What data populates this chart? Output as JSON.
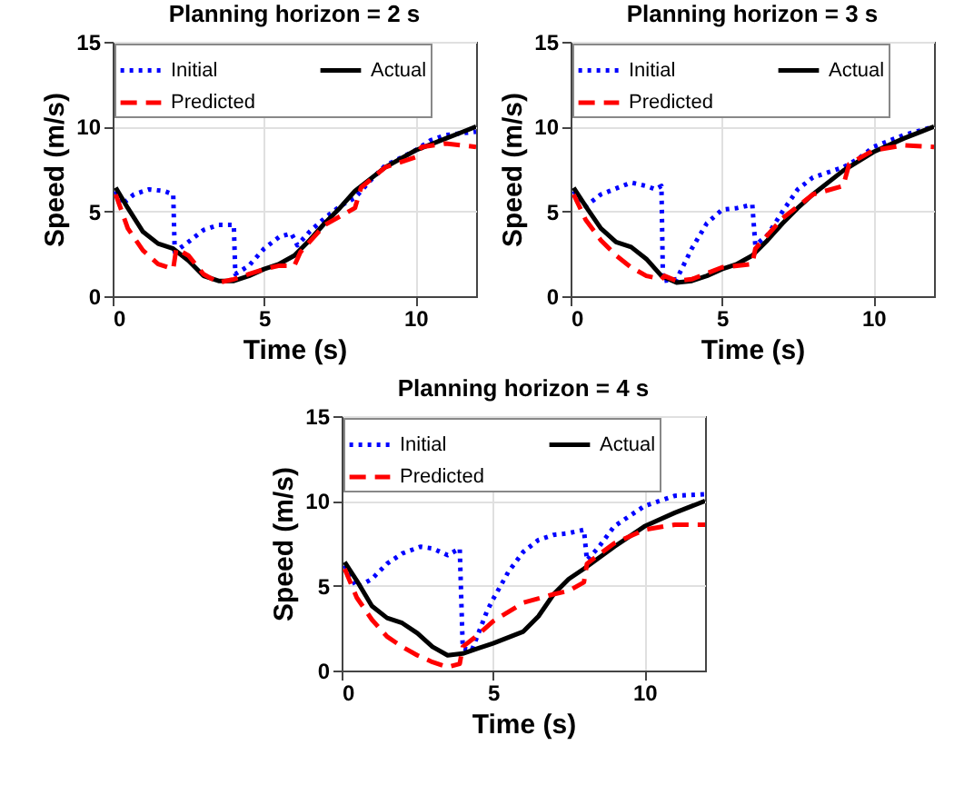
{
  "chart_data": [
    {
      "type": "line",
      "title": "Planning horizon = 2 s",
      "xlabel": "Time (s)",
      "ylabel": "Speed (m/s)",
      "xlim": [
        0,
        12
      ],
      "xticks": [
        0,
        5,
        10
      ],
      "ylim": [
        0,
        15
      ],
      "yticks": [
        0,
        5,
        10,
        15
      ],
      "grid": true,
      "legend": "top",
      "series": [
        {
          "name": "Initial",
          "color": "#0000ff",
          "line_style": "dotted",
          "x": [
            0.1,
            0.3,
            0.7,
            1.2,
            1.7,
            2,
            2.05,
            2.5,
            3,
            3.5,
            4,
            4.05,
            4.5,
            5,
            5.5,
            5.9,
            6.1,
            6.5,
            7,
            7.5,
            8,
            8.5,
            9,
            10,
            10.5,
            11,
            12
          ],
          "values": [
            6.2,
            5.4,
            6.0,
            6.3,
            6.2,
            6.0,
            2.6,
            3.2,
            3.9,
            4.2,
            4.2,
            1.3,
            1.8,
            2.8,
            3.5,
            3.7,
            3.0,
            3.8,
            4.6,
            5.3,
            5.8,
            6.8,
            7.7,
            8.6,
            9.2,
            9.5,
            9.7
          ]
        },
        {
          "name": "Actual",
          "color": "#000000",
          "line_style": "solid",
          "x": [
            0.1,
            0.5,
            1,
            1.5,
            2,
            2.5,
            3,
            3.5,
            4,
            4.5,
            5,
            5.5,
            6,
            6.5,
            7,
            7.5,
            8,
            9,
            10,
            11,
            12
          ],
          "values": [
            6.4,
            5.2,
            3.8,
            3.1,
            2.8,
            2.1,
            1.2,
            0.9,
            0.9,
            1.2,
            1.6,
            1.9,
            2.4,
            3.3,
            4.3,
            5.2,
            6.2,
            7.6,
            8.6,
            9.3,
            10
          ]
        },
        {
          "name": "Predicted",
          "color": "#ff0000",
          "line_style": "dashed",
          "x": [
            0.1,
            0.5,
            1,
            1.5,
            2,
            2.1,
            2.5,
            3,
            3.5,
            4,
            4.5,
            5,
            5.5,
            6,
            6.2,
            7,
            7.5,
            8,
            8.2,
            9,
            10,
            10.2,
            11,
            11.5,
            12
          ],
          "values": [
            6.0,
            4.0,
            2.7,
            1.9,
            1.6,
            2.8,
            2.4,
            1.3,
            0.8,
            1.0,
            1.3,
            1.6,
            1.8,
            1.8,
            2.6,
            4.2,
            4.7,
            5.2,
            6.4,
            7.6,
            8.2,
            8.8,
            9.0,
            8.9,
            8.8
          ]
        }
      ]
    },
    {
      "type": "line",
      "title": "Planning horizon = 3 s",
      "xlabel": "Time (s)",
      "ylabel": "Speed (m/s)",
      "xlim": [
        0,
        12
      ],
      "xticks": [
        0,
        5,
        10
      ],
      "ylim": [
        0,
        15
      ],
      "yticks": [
        0,
        5,
        10,
        15
      ],
      "grid": true,
      "legend": "top",
      "series": [
        {
          "name": "Initial",
          "color": "#0000ff",
          "line_style": "dotted",
          "x": [
            0.1,
            0.5,
            1,
            2,
            2.5,
            2.8,
            3,
            3.05,
            3.5,
            4,
            4.5,
            5,
            5.5,
            6,
            6.1,
            6.5,
            7,
            7.5,
            8,
            9,
            9.5,
            10,
            11,
            12
          ],
          "values": [
            6.2,
            5.3,
            6.0,
            6.7,
            6.5,
            6.3,
            6.5,
            0.9,
            1.0,
            2.8,
            4.3,
            5.1,
            5.2,
            5.4,
            3.0,
            3.6,
            5.0,
            6.3,
            7.0,
            7.6,
            8.1,
            8.8,
            9.5,
            10
          ]
        },
        {
          "name": "Actual",
          "color": "#000000",
          "line_style": "solid",
          "x": [
            0.1,
            0.5,
            1,
            1.5,
            2,
            2.5,
            3,
            3.5,
            4,
            4.5,
            5,
            5.5,
            6,
            6.5,
            7,
            7.5,
            8,
            9,
            10,
            11,
            12
          ],
          "values": [
            6.4,
            5.3,
            4.0,
            3.2,
            2.9,
            2.2,
            1.2,
            0.8,
            0.9,
            1.2,
            1.6,
            1.9,
            2.4,
            3.3,
            4.3,
            5.2,
            6.0,
            7.4,
            8.5,
            9.3,
            10
          ]
        },
        {
          "name": "Predicted",
          "color": "#ff0000",
          "line_style": "dashed",
          "x": [
            0.1,
            0.5,
            1,
            1.5,
            2,
            2.5,
            3,
            3.1,
            3.5,
            4,
            5,
            6,
            6.1,
            7,
            8,
            9,
            9.2,
            10,
            11,
            12
          ],
          "values": [
            6.0,
            4.5,
            3.3,
            2.4,
            1.7,
            1.2,
            1.0,
            1.2,
            0.9,
            1.0,
            1.7,
            1.9,
            2.8,
            4.6,
            6.0,
            6.5,
            7.8,
            8.6,
            8.9,
            8.8
          ]
        }
      ]
    },
    {
      "type": "line",
      "title": "Planning horizon = 4 s",
      "xlabel": "Time (s)",
      "ylabel": "Speed (m/s)",
      "xlim": [
        0,
        12
      ],
      "xticks": [
        0,
        5,
        10
      ],
      "ylim": [
        0,
        15
      ],
      "yticks": [
        0,
        5,
        10,
        15
      ],
      "grid": true,
      "legend": "top",
      "series": [
        {
          "name": "Initial",
          "color": "#0000ff",
          "line_style": "dotted",
          "x": [
            0.1,
            0.5,
            1,
            1.5,
            2,
            2.6,
            3,
            3.5,
            3.9,
            4.0,
            4.3,
            4.8,
            5,
            5.5,
            6,
            6.5,
            7,
            7.5,
            8,
            8.1,
            8.5,
            9,
            10,
            11,
            12
          ],
          "values": [
            6.2,
            4.9,
            5.4,
            6.3,
            6.9,
            7.3,
            7.2,
            6.8,
            7.2,
            1.3,
            1.2,
            3.5,
            4.2,
            5.8,
            7.0,
            7.7,
            8.0,
            8.1,
            8.3,
            6.5,
            7.3,
            8.5,
            9.7,
            10.3,
            10.4
          ]
        },
        {
          "name": "Actual",
          "color": "#000000",
          "line_style": "solid",
          "x": [
            0.1,
            0.5,
            1,
            1.5,
            2,
            2.5,
            3,
            3.5,
            4,
            4.5,
            5,
            6,
            6.5,
            7,
            7.5,
            8,
            9,
            10,
            11,
            12
          ],
          "values": [
            6.4,
            5.3,
            3.8,
            3.1,
            2.8,
            2.2,
            1.4,
            0.9,
            1.0,
            1.3,
            1.6,
            2.3,
            3.2,
            4.5,
            5.4,
            6.0,
            7.3,
            8.5,
            9.3,
            10
          ]
        },
        {
          "name": "Predicted",
          "color": "#ff0000",
          "line_style": "dashed",
          "x": [
            0.1,
            0.5,
            1,
            1.5,
            2,
            2.5,
            3,
            3.5,
            3.9,
            4.0,
            4.5,
            5,
            6,
            7,
            7.5,
            8,
            8.1,
            9,
            10,
            11,
            12
          ],
          "values": [
            6.0,
            4.3,
            3.0,
            2.0,
            1.4,
            0.9,
            0.5,
            0.2,
            0.4,
            1.4,
            2.1,
            2.9,
            4.0,
            4.5,
            4.7,
            5.2,
            6.3,
            7.5,
            8.3,
            8.6,
            8.6
          ]
        }
      ]
    }
  ]
}
